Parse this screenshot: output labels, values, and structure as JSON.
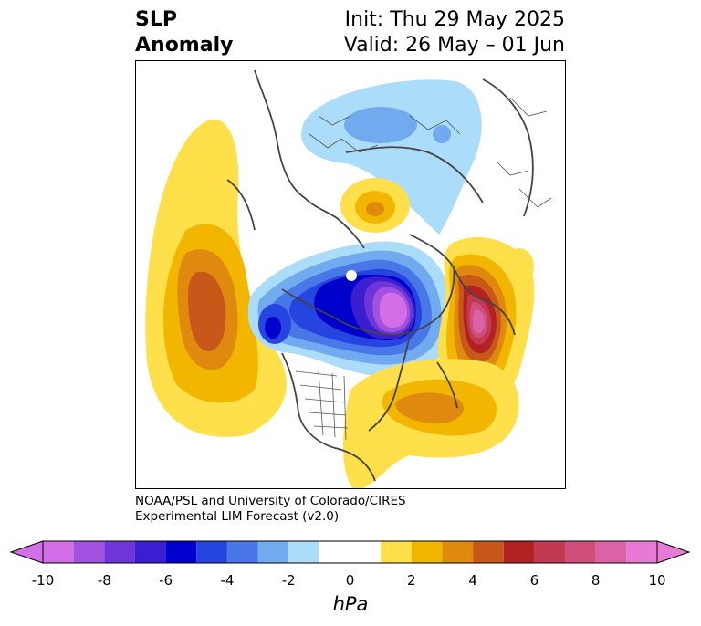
{
  "header": {
    "title_line1": "SLP",
    "title_line2": "Anomaly",
    "init": "Init: Thu 29 May 2025",
    "valid": "Valid: 26 May – 01 Jun"
  },
  "credit": {
    "line1": "NOAA/PSL and University of Colorado/CIRES",
    "line2": "Experimental LIM Forecast (v2.0)"
  },
  "colorbar": {
    "unit": "hPa",
    "ticks": [
      "-10",
      "-8",
      "-6",
      "-4",
      "-2",
      "0",
      "2",
      "4",
      "6",
      "8",
      "10"
    ],
    "bins": [
      {
        "range": "-10 to -9",
        "color": "#d36fe6"
      },
      {
        "range": "-9 to -8",
        "color": "#a150e0"
      },
      {
        "range": "-8 to -7",
        "color": "#6e35d8"
      },
      {
        "range": "-7 to -6",
        "color": "#3a1ed0"
      },
      {
        "range": "-6 to -5",
        "color": "#0000cc"
      },
      {
        "range": "-5 to -4",
        "color": "#2645e0"
      },
      {
        "range": "-4 to -3",
        "color": "#4a77e8"
      },
      {
        "range": "-3 to -2",
        "color": "#72aaf0"
      },
      {
        "range": "-2 to -1",
        "color": "#abdcfa"
      },
      {
        "range": "-1 to 1",
        "color": "#ffffff"
      },
      {
        "range": "1 to 2",
        "color": "#ffe04a"
      },
      {
        "range": "2 to 3",
        "color": "#f2b500"
      },
      {
        "range": "3 to 4",
        "color": "#e0890f"
      },
      {
        "range": "4 to 5",
        "color": "#c8581a"
      },
      {
        "range": "5 to 6",
        "color": "#b22222"
      },
      {
        "range": "6 to 7",
        "color": "#c23a52"
      },
      {
        "range": "7 to 8",
        "color": "#d04e7a"
      },
      {
        "range": "8 to 9",
        "color": "#db62a6"
      },
      {
        "range": "9 to 10",
        "color": "#e87ad6"
      }
    ],
    "under_color": "#d36fe6",
    "over_color": "#e87ad6"
  },
  "map_features": {
    "projection": "polar stereographic, North Pole centered",
    "anomalies": [
      {
        "name": "negative anomaly over Arctic / Siberia",
        "peak_hPa": -10
      },
      {
        "name": "positive anomaly over Scandinavia / Barents",
        "peak_hPa": 8
      },
      {
        "name": "positive anomaly over North Pacific",
        "peak_hPa": 5
      },
      {
        "name": "positive anomaly over North Atlantic",
        "peak_hPa": 4
      },
      {
        "name": "positive anomaly over Central Asia",
        "peak_hPa": 4
      },
      {
        "name": "weak negative anomaly over East Asia",
        "peak_hPa": -3
      }
    ]
  }
}
